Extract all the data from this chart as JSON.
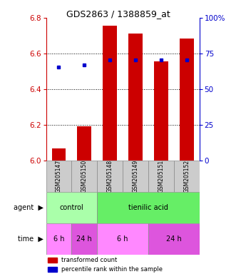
{
  "title": "GDS2863 / 1388859_at",
  "samples": [
    "GSM205147",
    "GSM205150",
    "GSM205148",
    "GSM205149",
    "GSM205151",
    "GSM205152"
  ],
  "bar_values": [
    6.065,
    6.19,
    6.755,
    6.71,
    6.555,
    6.685
  ],
  "percentile_values": [
    6.525,
    6.535,
    6.565,
    6.565,
    6.565,
    6.565
  ],
  "ylim_left": [
    6.0,
    6.8
  ],
  "ylim_right": [
    0,
    100
  ],
  "yticks_left": [
    6.0,
    6.2,
    6.4,
    6.6,
    6.8
  ],
  "yticks_right": [
    0,
    25,
    50,
    75,
    100
  ],
  "bar_color": "#cc0000",
  "dot_color": "#0000cc",
  "bar_width": 0.55,
  "agent_labels": [
    {
      "label": "control",
      "span": [
        0,
        2
      ],
      "color": "#aaffaa"
    },
    {
      "label": "tienilic acid",
      "span": [
        2,
        6
      ],
      "color": "#66ee66"
    }
  ],
  "time_labels": [
    {
      "label": "6 h",
      "span": [
        0,
        1
      ],
      "color": "#ff88ff"
    },
    {
      "label": "24 h",
      "span": [
        1,
        2
      ],
      "color": "#dd55dd"
    },
    {
      "label": "6 h",
      "span": [
        2,
        4
      ],
      "color": "#ff88ff"
    },
    {
      "label": "24 h",
      "span": [
        4,
        6
      ],
      "color": "#dd55dd"
    }
  ],
  "legend_items": [
    {
      "label": "transformed count",
      "color": "#cc0000"
    },
    {
      "label": "percentile rank within the sample",
      "color": "#0000cc"
    }
  ],
  "xlabel_color": "#cc0000",
  "right_axis_color": "#0000cc",
  "sample_box_color": "#cccccc",
  "gridline_ticks": [
    6.2,
    6.4,
    6.6
  ]
}
